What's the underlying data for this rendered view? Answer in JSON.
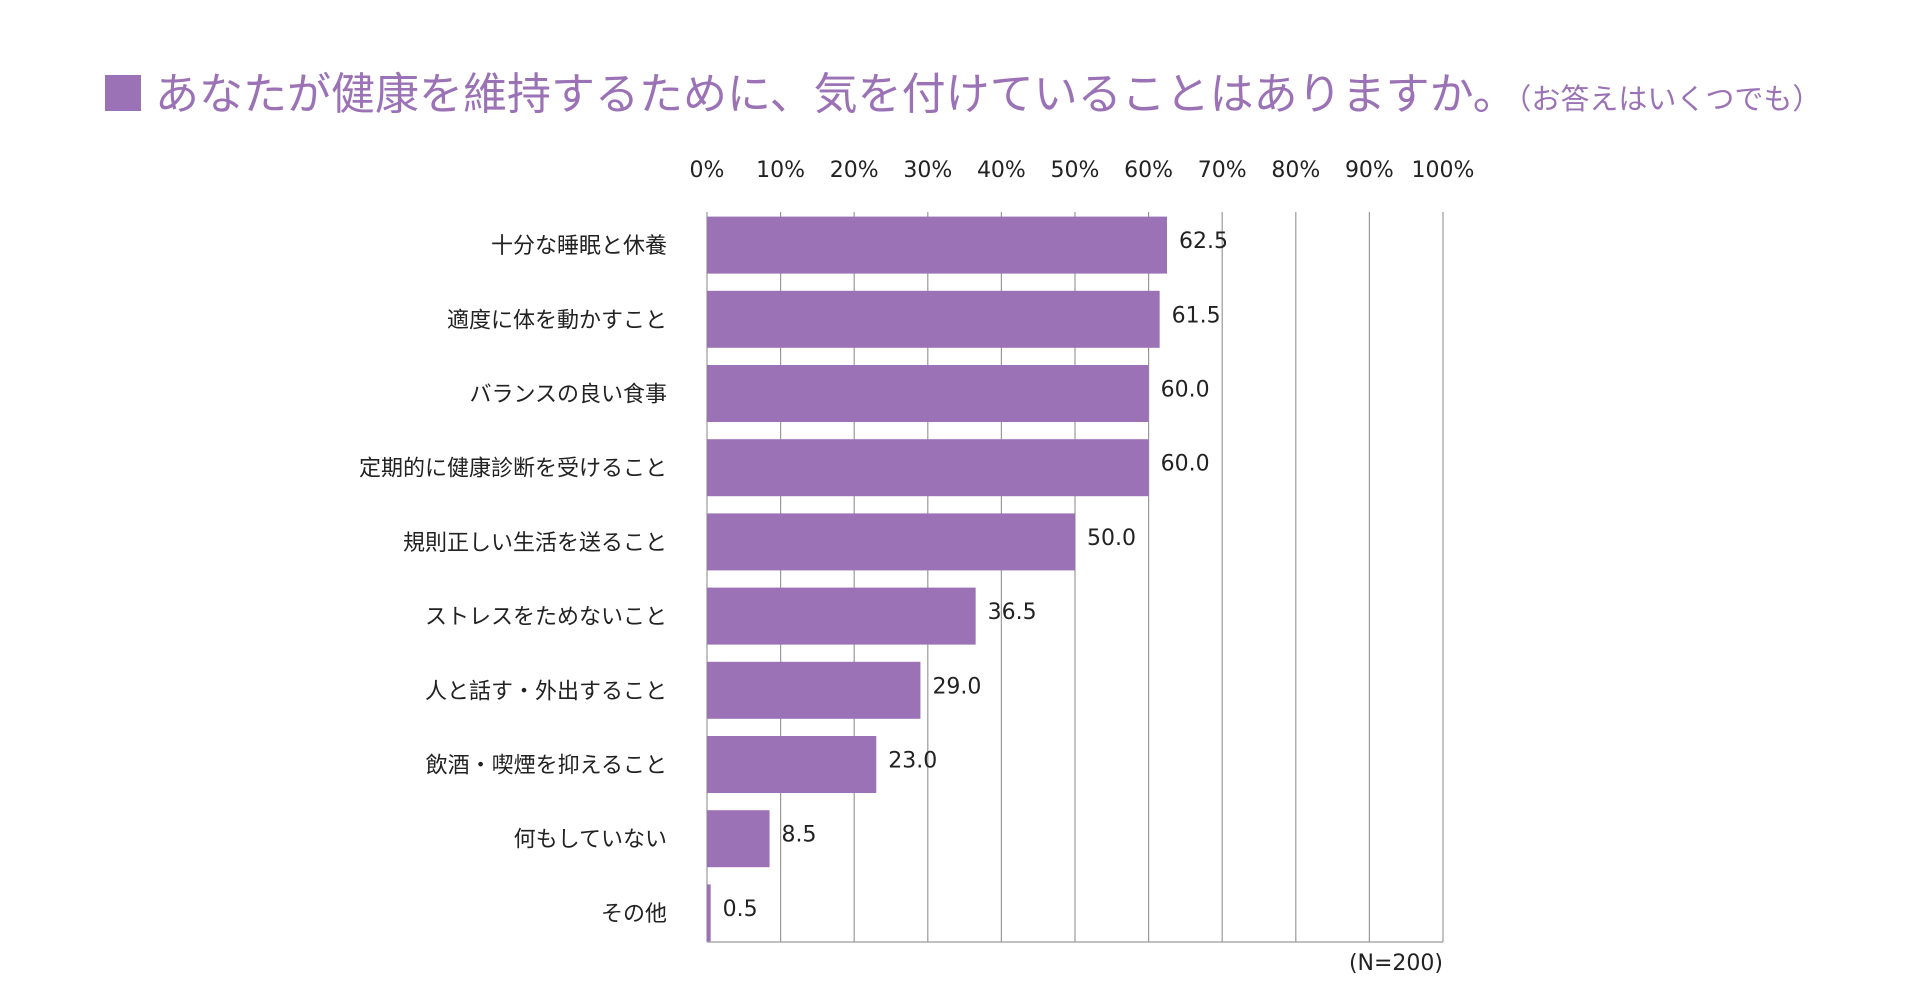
{
  "title": {
    "main": "あなたが健康を維持するために、気を付けていることはありますか。",
    "sub": "（お答えはいくつでも）"
  },
  "colors": {
    "accent": "#9b72b5",
    "bar": "#9b72b5",
    "grid": "#9a9a9a",
    "text": "#222222"
  },
  "chart_data": {
    "type": "bar",
    "orientation": "horizontal",
    "title": "あなたが健康を維持するために、気を付けていることはありますか。（お答えはいくつでも）",
    "categories": [
      "十分な睡眠と休養",
      "適度に体を動かすこと",
      "バランスの良い食事",
      "定期的に健康診断を受けること",
      "規則正しい生活を送ること",
      "ストレスをためないこと",
      "人と話す・外出すること",
      "飲酒・喫煙を抑えること",
      "何もしていない",
      "その他"
    ],
    "values": [
      62.5,
      61.5,
      60.0,
      60.0,
      50.0,
      36.5,
      29.0,
      23.0,
      8.5,
      0.5
    ],
    "value_labels": [
      "62.5",
      "61.5",
      "60.0",
      "60.0",
      "50.0",
      "36.5",
      "29.0",
      "23.0",
      "8.5",
      "0.5"
    ],
    "xlim": [
      0,
      100
    ],
    "xticks": [
      0,
      10,
      20,
      30,
      40,
      50,
      60,
      70,
      80,
      90,
      100
    ],
    "xtick_labels": [
      "0%",
      "10%",
      "20%",
      "30%",
      "40%",
      "50%",
      "60%",
      "70%",
      "80%",
      "90%",
      "100%"
    ],
    "xaxis_position": "top",
    "grid": true,
    "legend": "none",
    "note": "(N=200)"
  }
}
